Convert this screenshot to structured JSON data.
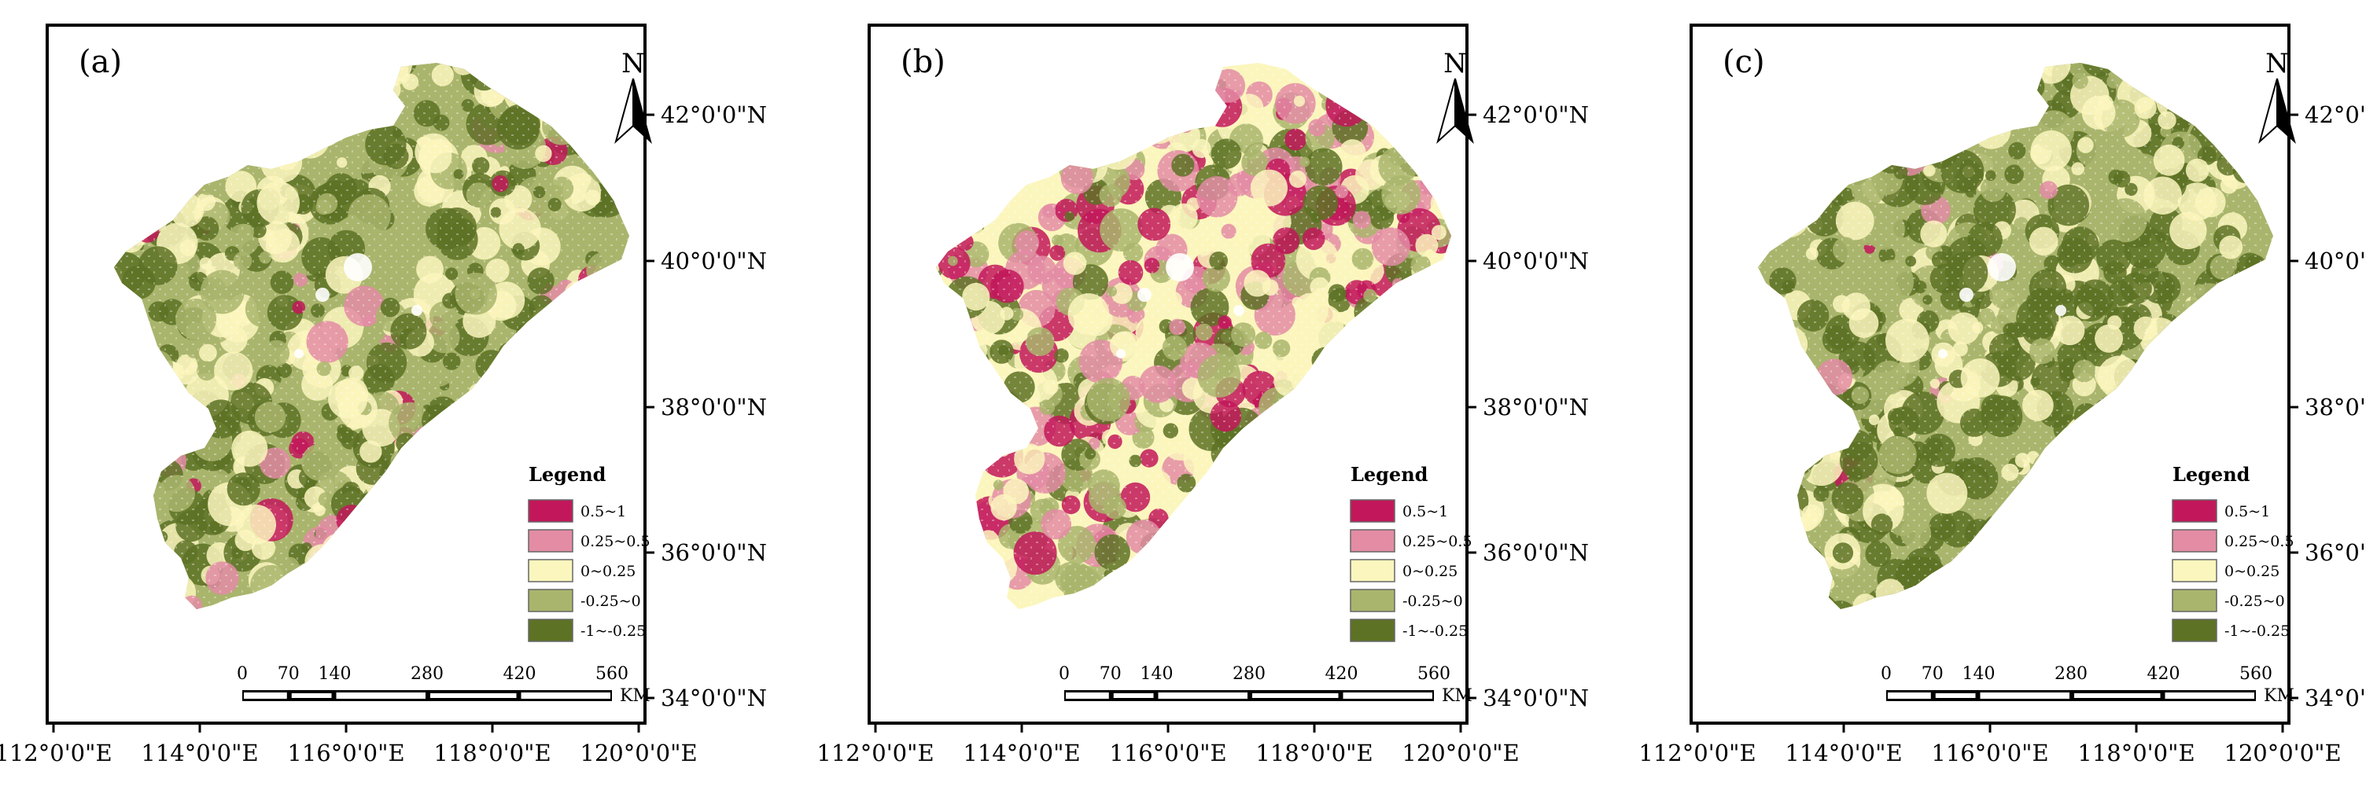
{
  "lat_labels": [
    "42°0'0\"N",
    "40°0'0\"N",
    "38°0'0\"N",
    "36°0'0\"N",
    "34°0'0\"N"
  ],
  "lon_labels": [
    "112°0'0\"E",
    "114°0'0\"E",
    "116°0'0\"E",
    "118°0'0\"E",
    "120°0'0\"E"
  ],
  "north_label": "N",
  "legend": {
    "title": "Legend",
    "classes": [
      {
        "label": "0.5~1",
        "color": "#c2185b"
      },
      {
        "label": "0.25~0.5",
        "color": "#e38ca4"
      },
      {
        "label": "0~0.25",
        "color": "#fbf6bd"
      },
      {
        "label": "-0.25~0",
        "color": "#a9b56c"
      },
      {
        "label": "-1~-0.25",
        "color": "#5d7224"
      }
    ]
  },
  "scalebar": {
    "ticks": [
      "0",
      "70",
      "140",
      "280",
      "420",
      "560"
    ],
    "unit": "KM"
  },
  "panels": [
    {
      "label": "(a)",
      "dominant": [
        "#a9b56c",
        "#fbf6bd"
      ],
      "pink_share": 0.08,
      "dark_share": 0.35
    },
    {
      "label": "(b)",
      "dominant": [
        "#fbf6bd",
        "#a9b56c"
      ],
      "pink_share": 0.32,
      "dark_share": 0.15
    },
    {
      "label": "(c)",
      "dominant": [
        "#a9b56c",
        "#5d7224"
      ],
      "pink_share": 0.03,
      "dark_share": 0.45
    }
  ]
}
